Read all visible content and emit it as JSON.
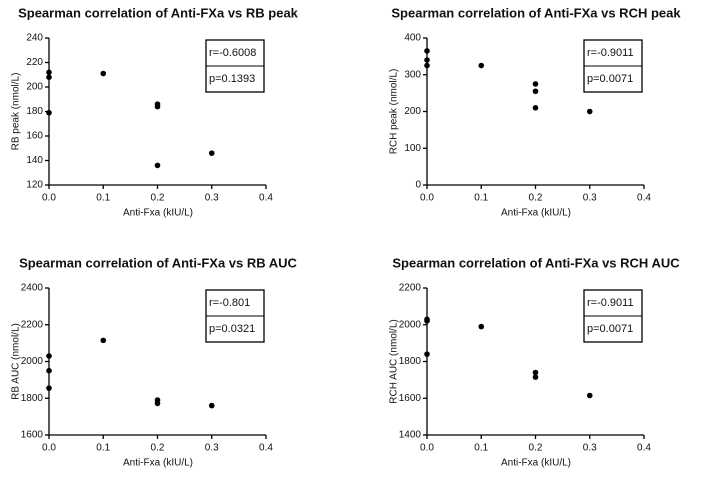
{
  "chart_data": [
    {
      "type": "scatter",
      "title": "Spearman correlation of Anti-FXa vs RB peak",
      "x_label": "Anti-Fxa (kIU/L)",
      "y_label": "RB peak (nmol/L)",
      "annotations": [
        "r=-0.6008",
        "p=0.1393"
      ],
      "x": [
        0,
        0,
        0,
        0.1,
        0.2,
        0.2,
        0.2,
        0.3
      ],
      "values": [
        212,
        208,
        179,
        211,
        186,
        184,
        136,
        146
      ],
      "color": "#000000",
      "xlim": [
        0,
        0.4
      ],
      "ylim": [
        120,
        240
      ],
      "xticks": [
        {
          "value": 0,
          "label": "0.0"
        },
        0.1,
        0.2,
        0.3,
        0.4
      ],
      "yticks": [
        120,
        140,
        160,
        180,
        200,
        220,
        240
      ]
    },
    {
      "type": "scatter",
      "title": "Spearman correlation of Anti-FXa vs RCH peak",
      "x_label": "Anti-Fxa (kIU/L)",
      "y_label": "RCH peak (nmol/L)",
      "annotations": [
        "r=-0.9011",
        "p=0.0071"
      ],
      "x": [
        0,
        0,
        0,
        0.1,
        0.2,
        0.2,
        0.2,
        0.3
      ],
      "values": [
        365,
        340,
        325,
        325,
        275,
        255,
        210,
        200
      ],
      "color": "#000000",
      "xlim": [
        0,
        0.4
      ],
      "ylim": [
        0,
        400
      ],
      "xticks": [
        {
          "value": 0,
          "label": "0.0"
        },
        0.1,
        0.2,
        0.3,
        0.4
      ],
      "yticks": [
        0,
        100,
        200,
        300,
        400
      ]
    },
    {
      "type": "scatter",
      "title": "Spearman correlation of Anti-FXa vs RB AUC",
      "x_label": "Anti-Fxa (kIU/L)",
      "y_label": "RB AUC (nmol/L)",
      "annotations": [
        "r=-0.801",
        "p=0.0321"
      ],
      "x": [
        0,
        0,
        0,
        0.1,
        0.2,
        0.2,
        0.3
      ],
      "values": [
        2030,
        1950,
        1855,
        2115,
        1790,
        1772,
        1760
      ],
      "color": "#000000",
      "xlim": [
        0,
        0.4
      ],
      "ylim": [
        1600,
        2400
      ],
      "xticks": [
        {
          "value": 0,
          "label": "0.0"
        },
        0.1,
        0.2,
        0.3,
        0.4
      ],
      "yticks": [
        1600,
        1800,
        2000,
        2200,
        2400
      ]
    },
    {
      "type": "scatter",
      "title": "Spearman correlation of Anti-FXa vs RCH AUC",
      "x_label": "Anti-Fxa (kIU/L)",
      "y_label": "RCH AUC (nmol/L)",
      "annotations": [
        "r=-0.9011",
        "p=0.0071"
      ],
      "x": [
        0,
        0,
        0,
        0.1,
        0.2,
        0.2,
        0.3
      ],
      "values": [
        2030,
        2020,
        1840,
        1990,
        1740,
        1715,
        1615
      ],
      "color": "#000000",
      "xlim": [
        0,
        0.4
      ],
      "ylim": [
        1400,
        2200
      ],
      "xticks": [
        {
          "value": 0,
          "label": "0.0"
        },
        0.1,
        0.2,
        0.3,
        0.4
      ],
      "yticks": [
        1400,
        1600,
        1800,
        2000,
        2200
      ]
    }
  ]
}
